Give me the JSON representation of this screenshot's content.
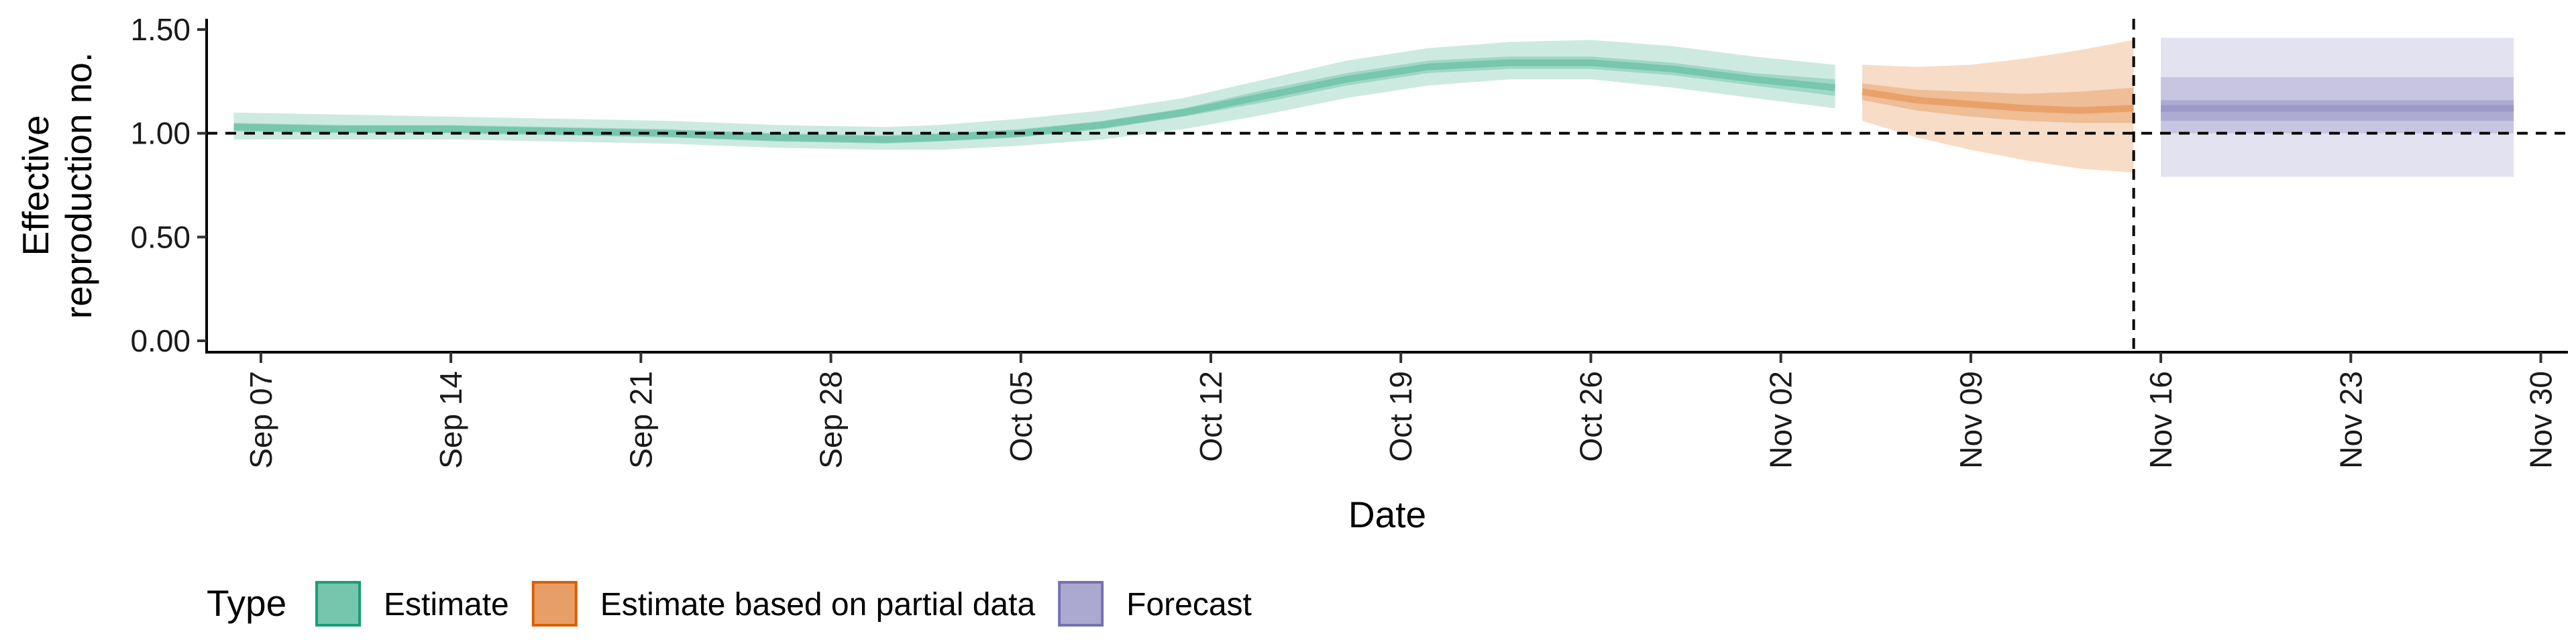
{
  "chart_data": {
    "type": "area",
    "xlabel": "Date",
    "ylabel": "Effective reproduction no.",
    "ylabel_lines": [
      "Effective",
      "reproduction no."
    ],
    "ylim": [
      0,
      1.5
    ],
    "y_ticks": [
      0.0,
      0.5,
      1.0,
      1.5
    ],
    "y_tick_labels": [
      "0.00",
      "0.50",
      "1.00",
      "1.50"
    ],
    "xlim": [
      "2020-09-05",
      "2020-12-01"
    ],
    "x_ticks": [
      "2020-09-07",
      "2020-09-14",
      "2020-09-21",
      "2020-09-28",
      "2020-10-05",
      "2020-10-12",
      "2020-10-19",
      "2020-10-26",
      "2020-11-02",
      "2020-11-09",
      "2020-11-16",
      "2020-11-23",
      "2020-11-30"
    ],
    "x_tick_labels": [
      "Sep 07",
      "Sep 14",
      "Sep 21",
      "Sep 28",
      "Oct 05",
      "Oct 12",
      "Oct 19",
      "Oct 26",
      "Nov 02",
      "Nov 09",
      "Nov 16",
      "Nov 23",
      "Nov 30"
    ],
    "reference_line_y": 1.0,
    "vertical_line_x": "2020-11-15",
    "grid": false,
    "legend": {
      "title": "Type",
      "position": "bottom",
      "entries": [
        {
          "label": "Estimate",
          "color": "#1b9e77"
        },
        {
          "label": "Estimate based on partial data",
          "color": "#d95f02"
        },
        {
          "label": "Forecast",
          "color": "#7570b3"
        }
      ]
    },
    "series": [
      {
        "name": "Estimate",
        "color": "#1b9e77",
        "x": [
          "2020-09-06",
          "2020-09-10",
          "2020-09-14",
          "2020-09-18",
          "2020-09-22",
          "2020-09-26",
          "2020-09-30",
          "2020-10-02",
          "2020-10-05",
          "2020-10-08",
          "2020-10-11",
          "2020-10-14",
          "2020-10-17",
          "2020-10-20",
          "2020-10-23",
          "2020-10-26",
          "2020-10-29",
          "2020-11-01",
          "2020-11-04"
        ],
        "median": [
          1.03,
          1.02,
          1.02,
          1.01,
          1.0,
          0.98,
          0.97,
          0.98,
          1.0,
          1.04,
          1.1,
          1.18,
          1.26,
          1.32,
          1.34,
          1.34,
          1.31,
          1.26,
          1.22
        ],
        "lower_50": [
          1.01,
          1.0,
          1.0,
          0.99,
          0.98,
          0.96,
          0.95,
          0.96,
          0.98,
          1.02,
          1.08,
          1.15,
          1.23,
          1.29,
          1.31,
          1.31,
          1.28,
          1.23,
          1.18
        ],
        "upper_50": [
          1.05,
          1.04,
          1.04,
          1.03,
          1.02,
          1.0,
          0.99,
          1.0,
          1.02,
          1.06,
          1.12,
          1.21,
          1.29,
          1.35,
          1.37,
          1.37,
          1.34,
          1.29,
          1.26
        ],
        "lower_90": [
          0.97,
          0.97,
          0.97,
          0.96,
          0.95,
          0.93,
          0.92,
          0.92,
          0.94,
          0.97,
          1.02,
          1.09,
          1.17,
          1.23,
          1.26,
          1.26,
          1.22,
          1.17,
          1.12
        ],
        "upper_90": [
          1.1,
          1.09,
          1.08,
          1.07,
          1.06,
          1.04,
          1.03,
          1.04,
          1.07,
          1.11,
          1.17,
          1.26,
          1.35,
          1.41,
          1.44,
          1.45,
          1.42,
          1.37,
          1.33
        ]
      },
      {
        "name": "Estimate based on partial data",
        "color": "#d95f02",
        "x": [
          "2020-11-05",
          "2020-11-07",
          "2020-11-09",
          "2020-11-11",
          "2020-11-13",
          "2020-11-15"
        ],
        "median": [
          1.2,
          1.16,
          1.14,
          1.12,
          1.11,
          1.12
        ],
        "lower_50": [
          1.16,
          1.11,
          1.08,
          1.06,
          1.05,
          1.05
        ],
        "upper_50": [
          1.24,
          1.21,
          1.2,
          1.19,
          1.2,
          1.22
        ],
        "lower_90": [
          1.06,
          0.98,
          0.92,
          0.87,
          0.83,
          0.81
        ],
        "upper_90": [
          1.33,
          1.32,
          1.33,
          1.36,
          1.4,
          1.45
        ]
      },
      {
        "name": "Forecast",
        "color": "#7570b3",
        "x": [
          "2020-11-16",
          "2020-11-29"
        ],
        "median": [
          1.12,
          1.12
        ],
        "lower_50": [
          1.06,
          1.06
        ],
        "upper_50": [
          1.16,
          1.16
        ],
        "lower_90": [
          1.0,
          1.0
        ],
        "upper_90": [
          1.27,
          1.27
        ],
        "lower_outer": [
          0.79,
          0.79
        ],
        "upper_outer": [
          1.46,
          1.46
        ]
      }
    ]
  }
}
